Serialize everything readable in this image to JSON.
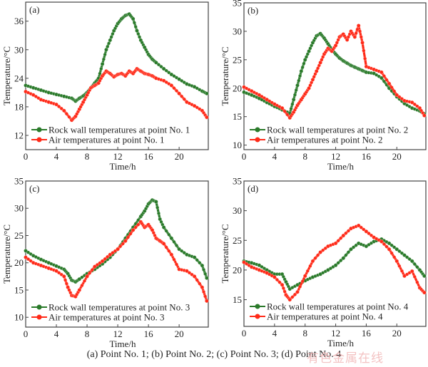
{
  "caption": "(a) Point No. 1; (b) Point No. 2; (c) Point No. 3; (d) Point No. 4",
  "watermark": "有色金属在线",
  "colors": {
    "rock": "#2a7a2a",
    "air": "#ff2a18",
    "axis": "#444444"
  },
  "chart_data": [
    {
      "type": "line",
      "panel_label": "(a)",
      "xlabel": "Time/h",
      "ylabel": "Temperature/°C",
      "xlim": [
        0,
        23.8
      ],
      "ylim": [
        9,
        40
      ],
      "xticks": [
        0,
        4,
        8,
        12,
        16,
        20
      ],
      "yticks": [
        12,
        18,
        24,
        30,
        36
      ],
      "legend_position": "bottom-left",
      "x": [
        0,
        1,
        2,
        3,
        4,
        5,
        6,
        6.5,
        7,
        7.5,
        8,
        8.5,
        9,
        9.5,
        10,
        10.5,
        11,
        11.5,
        12,
        12.5,
        13,
        13.5,
        14,
        14.5,
        15,
        15.5,
        16,
        16.5,
        17,
        18,
        19,
        20,
        21,
        22,
        23,
        23.6
      ],
      "series": [
        {
          "name": "Rock wall temperatures at point No. 1",
          "color_key": "rock",
          "values": [
            22.5,
            22,
            21.5,
            21,
            20.6,
            20.2,
            19.8,
            19.2,
            19.8,
            20.3,
            21,
            22,
            23,
            24,
            27,
            30,
            32,
            34,
            35.5,
            36.5,
            37.2,
            37.5,
            36.5,
            34,
            32,
            30.5,
            29,
            28,
            27.3,
            26,
            24.8,
            23.8,
            22.8,
            22.2,
            21.3,
            20.8
          ]
        },
        {
          "name": "Air temperatures at point No. 1",
          "color_key": "air",
          "values": [
            21.2,
            20.5,
            19.5,
            19,
            18.5,
            17.2,
            15.2,
            16,
            17.5,
            19,
            20.5,
            22,
            22.5,
            23,
            24.5,
            25.5,
            25,
            24.3,
            24.8,
            25,
            24.5,
            25.5,
            25,
            26,
            25.5,
            25,
            24.8,
            24.5,
            24,
            23.5,
            22.5,
            20.8,
            19,
            18.2,
            17.2,
            15.8
          ]
        }
      ]
    },
    {
      "type": "line",
      "panel_label": "(b)",
      "xlabel": "Time/h",
      "ylabel": "Temperature/°C",
      "xlim": [
        0,
        23.8
      ],
      "ylim": [
        9.2,
        35
      ],
      "xticks": [
        0,
        4,
        8,
        12,
        16,
        20
      ],
      "yticks": [
        10,
        15,
        20,
        25,
        30,
        35
      ],
      "legend_position": "bottom-left",
      "x": [
        0,
        1,
        2,
        3,
        4,
        5,
        6,
        6.5,
        7,
        7.5,
        8,
        8.5,
        9,
        9.5,
        10,
        10.5,
        11,
        11.5,
        12,
        12.5,
        13,
        13.5,
        14,
        14.5,
        15,
        15.5,
        16,
        17,
        18,
        19,
        20,
        21,
        22,
        23,
        23.6
      ],
      "series": [
        {
          "name": "Rock wall temperatures at point No. 2",
          "color_key": "rock",
          "values": [
            19.3,
            18.8,
            18.2,
            17.5,
            16.8,
            16.2,
            15.6,
            18,
            20.5,
            23,
            25,
            26.5,
            28,
            29.2,
            29.6,
            28.8,
            27.8,
            26.8,
            26,
            25.3,
            24.8,
            24.4,
            24,
            23.7,
            23.4,
            23.1,
            22.8,
            22.6,
            21.8,
            20,
            18.5,
            17.3,
            16.5,
            16,
            15.5
          ]
        },
        {
          "name": "Air temperatures at point No. 2",
          "color_key": "air",
          "values": [
            20.2,
            19.5,
            18.8,
            18,
            17.2,
            16.5,
            14.8,
            15.8,
            17,
            18,
            19,
            20,
            21.5,
            23,
            24.5,
            26,
            27,
            26.5,
            27.5,
            29,
            29.5,
            28.5,
            30,
            29,
            31,
            28,
            23.8,
            23.3,
            22.8,
            20.8,
            18.8,
            17.8,
            17.5,
            16.5,
            15.2
          ]
        }
      ]
    },
    {
      "type": "line",
      "panel_label": "(c)",
      "xlabel": "Time/h",
      "ylabel": "Temperature/°C",
      "xlim": [
        0,
        23.8
      ],
      "ylim": [
        8.2,
        35
      ],
      "xticks": [
        0,
        4,
        8,
        12,
        16,
        20
      ],
      "yticks": [
        10,
        15,
        20,
        25,
        30,
        35
      ],
      "legend_position": "bottom-left",
      "x": [
        0,
        1,
        2,
        3,
        4,
        5,
        5.5,
        6,
        6.5,
        7,
        8,
        9,
        10,
        11,
        12,
        13,
        14,
        15,
        15.5,
        16,
        16.5,
        17,
        17.5,
        18,
        19,
        20,
        21,
        22,
        23,
        23.6
      ],
      "series": [
        {
          "name": "Rock wall temperatures at point No. 3",
          "color_key": "rock",
          "values": [
            22.2,
            21.3,
            20.6,
            20,
            19.4,
            18.8,
            18,
            16.8,
            16.5,
            17,
            18,
            18.8,
            19.8,
            21,
            22.5,
            24.5,
            26.5,
            28.5,
            29.5,
            30.8,
            31.5,
            31.2,
            28,
            26.5,
            24.5,
            22.5,
            21.5,
            21,
            19.5,
            17.2
          ]
        },
        {
          "name": "Air temperatures at point No. 3",
          "color_key": "air",
          "values": [
            21,
            20,
            19.5,
            19,
            18.5,
            17.5,
            15.5,
            14,
            13.8,
            15,
            17.5,
            19.3,
            20.3,
            21.5,
            22.5,
            24,
            26,
            27.5,
            26.5,
            27,
            26,
            24.5,
            24,
            23.5,
            21.5,
            18.8,
            18.5,
            17.5,
            15.5,
            13
          ]
        }
      ]
    },
    {
      "type": "line",
      "panel_label": "(d)",
      "xlabel": "Time/h",
      "ylabel": "Temperature/°C",
      "xlim": [
        0,
        23.8
      ],
      "ylim": [
        10.5,
        35
      ],
      "xticks": [
        0,
        4,
        8,
        12,
        16,
        20
      ],
      "yticks": [
        15,
        20,
        25,
        30,
        35
      ],
      "legend_position": "bottom-left",
      "x": [
        0,
        1,
        2,
        3,
        4,
        5,
        5.5,
        6,
        7,
        8,
        9,
        10,
        11,
        12,
        13,
        14,
        15,
        16,
        17,
        18,
        19,
        20,
        21,
        22,
        23,
        23.6
      ],
      "series": [
        {
          "name": "Rock wall temperatures at point No. 4",
          "color_key": "rock",
          "values": [
            21.5,
            21.2,
            20.8,
            20,
            19.3,
            19.3,
            18,
            16.8,
            17.5,
            18.2,
            18.8,
            19.3,
            20,
            20.8,
            22,
            23.5,
            24.5,
            24,
            24.8,
            25.2,
            24.5,
            23.5,
            22.5,
            21.5,
            20,
            19
          ]
        },
        {
          "name": "Air temperatures at point No. 4",
          "color_key": "air",
          "values": [
            21.3,
            20.5,
            20,
            19.5,
            18.8,
            17.5,
            15.8,
            15,
            16.3,
            19,
            21.5,
            23,
            24,
            24.5,
            25.8,
            27,
            27.5,
            26.5,
            25.5,
            24.8,
            23.5,
            21.5,
            19,
            19.8,
            17,
            16.2
          ]
        }
      ]
    }
  ]
}
